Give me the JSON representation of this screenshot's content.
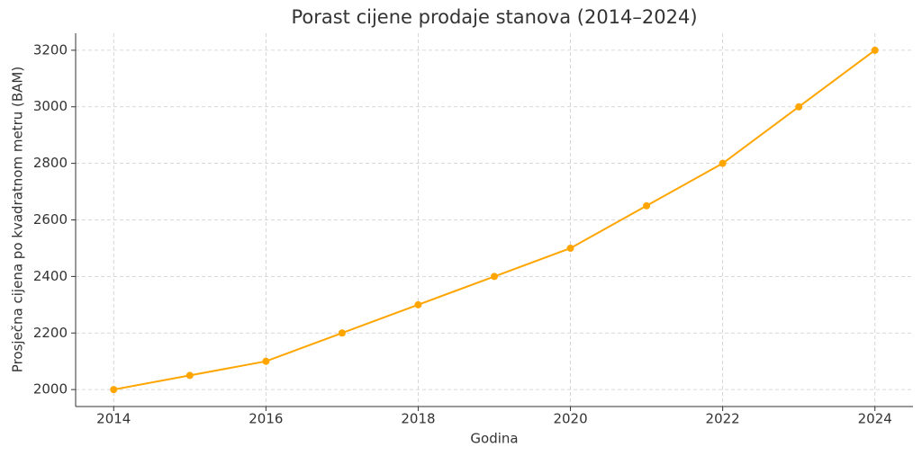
{
  "chart_data": {
    "type": "line",
    "title": "Porast cijene prodaje stanova (2014–2024)",
    "x_label": "Godina",
    "y_label": "Prosječna cijena po kvadratnom metru (BAM)",
    "x": [
      2014,
      2015,
      2016,
      2017,
      2018,
      2019,
      2020,
      2021,
      2022,
      2023,
      2024
    ],
    "values": [
      2000,
      2050,
      2100,
      2200,
      2300,
      2400,
      2500,
      2650,
      2800,
      3000,
      3200
    ],
    "color": "#ffa500",
    "xlim": [
      2013.5,
      2024.5
    ],
    "xticks": [
      2014,
      2016,
      2018,
      2020,
      2022,
      2024
    ],
    "ylim": [
      1940,
      3260
    ],
    "yticks": [
      2000,
      2200,
      2400,
      2600,
      2800,
      3000,
      3200
    ],
    "grid": true
  }
}
